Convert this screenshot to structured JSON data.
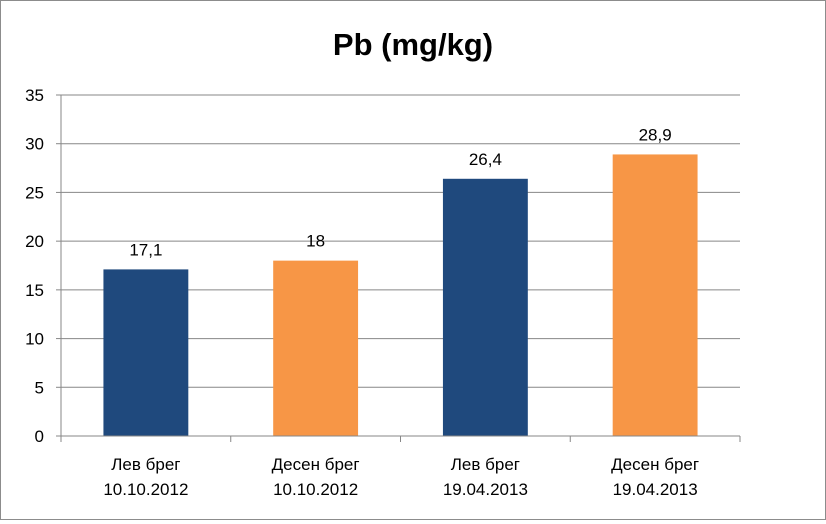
{
  "chart_data": {
    "type": "bar",
    "title": "Pb (mg/kg)",
    "xlabel": "",
    "ylabel": "",
    "ylim": [
      0,
      35
    ],
    "yticks": [
      0,
      5,
      10,
      15,
      20,
      25,
      30,
      35
    ],
    "ytick_labels": [
      "0",
      "5",
      "10",
      "15",
      "20",
      "25",
      "30",
      "35"
    ],
    "grid": true,
    "legend": "none",
    "categories": [
      [
        "Лев брег",
        "10.10.2012"
      ],
      [
        "Десен брег",
        "10.10.2012"
      ],
      [
        "Лев брег",
        "19.04.2013"
      ],
      [
        "Десен брег",
        "19.04.2013"
      ]
    ],
    "values": [
      17.1,
      18,
      26.4,
      28.9
    ],
    "data_labels": [
      "17,1",
      "18",
      "26,4",
      "28,9"
    ],
    "bar_colors": [
      "#1f497d",
      "#f79646",
      "#1f497d",
      "#f79646"
    ],
    "colors": {
      "gridline": "#878787",
      "axis": "#878787",
      "text": "#000000"
    }
  }
}
